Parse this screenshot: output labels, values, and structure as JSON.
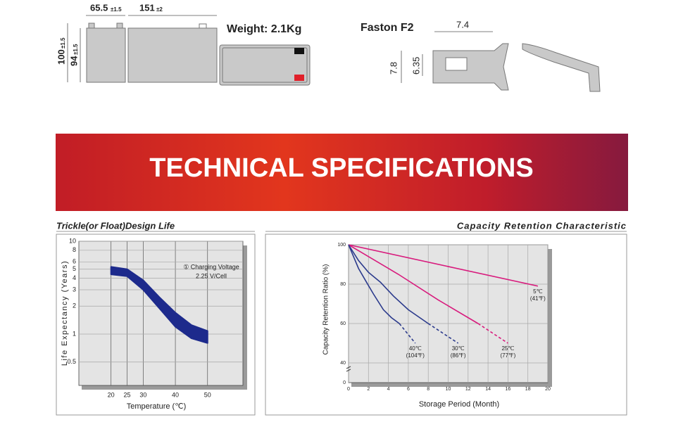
{
  "dimensions": {
    "width": "65.5",
    "width_tol": "±1.5",
    "length": "151",
    "length_tol": "±2",
    "height": "100",
    "height_tol": "±1.5",
    "height2": "94",
    "height2_tol": "±1.5",
    "weight": "Weight: 2.1Kg"
  },
  "terminal": {
    "title": "Faston F2",
    "width": "7.4",
    "height": "7.8",
    "height2": "6.35"
  },
  "banner": "TECHNICAL SPECIFICATIONS",
  "chart_data": [
    {
      "type": "area",
      "title": "Trickle(or Float)Design Life",
      "x_label": "Temperature (℃)",
      "y_label": "Life Expectancy (Years)",
      "annotation": [
        "① Charging Voltage",
        "2.25 V/Cell"
      ],
      "log_y": true,
      "grid": true,
      "color": "#1d2a8c",
      "x": [
        20,
        25,
        30,
        35,
        40,
        45,
        50
      ],
      "upper": [
        5.3,
        5.0,
        3.8,
        2.5,
        1.7,
        1.25,
        1.08
      ],
      "lower": [
        4.4,
        4.2,
        3.0,
        1.9,
        1.2,
        0.9,
        0.8
      ],
      "xlim": [
        10,
        61
      ],
      "xticks": [
        20,
        25,
        30,
        40,
        50
      ],
      "ylim": [
        0.28,
        10
      ],
      "yticks": [
        10,
        8,
        6,
        5,
        4,
        3,
        2,
        1,
        0.5
      ]
    },
    {
      "type": "line",
      "title": "Capacity Retention Characteristic",
      "x_label": "Storage Period (Month)",
      "y_label": "Capacity Retention Ratio (%)",
      "y_break_label": "0",
      "grid": true,
      "series": [
        {
          "name": "5℃",
          "name2": "(41℉)",
          "color": "#d81b7d",
          "x": [
            0,
            19
          ],
          "values": [
            100,
            79
          ]
        },
        {
          "name": "25℃",
          "name2": "(77℉)",
          "color": "#d81b7d",
          "x": [
            0,
            2,
            5,
            9,
            13
          ],
          "values": [
            100,
            94,
            85,
            72,
            60
          ],
          "projected_x": [
            13,
            16
          ],
          "projected_values": [
            60,
            50
          ]
        },
        {
          "name": "30℃",
          "name2": "(86℉)",
          "color": "#2b3a8c",
          "x": [
            0,
            1,
            2,
            3.2,
            4.5,
            6,
            8
          ],
          "values": [
            100,
            92,
            86,
            81,
            74,
            67,
            60
          ],
          "projected_x": [
            8,
            11
          ],
          "projected_values": [
            60,
            50
          ]
        },
        {
          "name": "40℃",
          "name2": "(104℉)",
          "color": "#2b3a8c",
          "x": [
            0,
            1,
            1.8,
            2.5,
            3.5,
            4.3,
            5.1
          ],
          "values": [
            100,
            88,
            81,
            75,
            67,
            63,
            60
          ],
          "projected_x": [
            5.1,
            6.7
          ],
          "projected_values": [
            60,
            50
          ]
        }
      ],
      "xlim": [
        0,
        20
      ],
      "xticks": [
        0,
        2,
        4,
        6,
        8,
        10,
        12,
        14,
        16,
        18,
        20
      ],
      "ylim": [
        30,
        100
      ],
      "yticks": [
        40,
        60,
        80,
        100
      ]
    }
  ]
}
